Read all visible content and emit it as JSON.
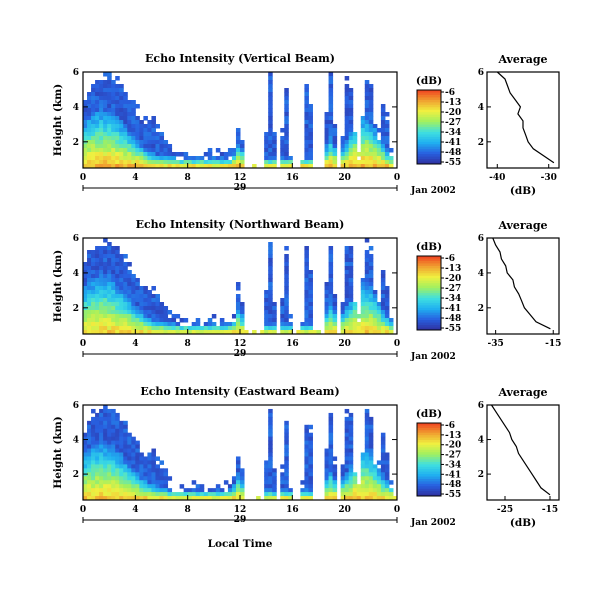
{
  "chart_data": [
    {
      "type": "heatmap",
      "title": "Echo Intensity (Vertical Beam)",
      "ylabel": "Height (km)",
      "x_ticks": [
        "0",
        "4",
        "8",
        "12",
        "16",
        "20",
        "0"
      ],
      "y_ticks": [
        "6",
        "4",
        "2"
      ],
      "date_marker": "29",
      "date_label": "Jan 2002",
      "xlim": [
        0,
        24
      ],
      "ylim": [
        0.5,
        6
      ],
      "colorbar_label": "(dB)",
      "colorbar_ticks": [
        "-6",
        "-13",
        "-20",
        "-27",
        "-34",
        "-41",
        "-48",
        "-55"
      ],
      "colorscale": [
        "#3030a0",
        "#2860e0",
        "#20b0f0",
        "#40e0e0",
        "#a0f060",
        "#f0f040",
        "#f0a030",
        "#f04020"
      ],
      "intensity": 1.0,
      "average": {
        "title": "Average",
        "xlabel": "(dB)",
        "x_ticks": [
          "-40",
          "-30"
        ],
        "y_ticks": [
          "6",
          "4",
          "2"
        ],
        "xlim": [
          -42,
          -28
        ],
        "ylim": [
          0.5,
          6
        ],
        "height_km": [
          6.0,
          5.6,
          5.2,
          4.8,
          4.4,
          4.0,
          3.6,
          3.2,
          2.8,
          2.4,
          2.0,
          1.6,
          1.2,
          0.8
        ],
        "db": [
          -40,
          -38.5,
          -38,
          -37.5,
          -36.5,
          -35.5,
          -36,
          -35,
          -35,
          -34.5,
          -34,
          -33,
          -31,
          -29
        ]
      }
    },
    {
      "type": "heatmap",
      "title": "Echo Intensity (Northward Beam)",
      "ylabel": "Height (km)",
      "x_ticks": [
        "0",
        "4",
        "8",
        "12",
        "16",
        "20",
        "0"
      ],
      "y_ticks": [
        "6",
        "4",
        "2"
      ],
      "date_marker": "29",
      "date_label": "Jan 2002",
      "xlim": [
        0,
        24
      ],
      "ylim": [
        0.5,
        6
      ],
      "colorbar_label": "(dB)",
      "colorbar_ticks": [
        "-6",
        "-13",
        "-20",
        "-27",
        "-34",
        "-41",
        "-48",
        "-55"
      ],
      "colorscale": [
        "#3030a0",
        "#2860e0",
        "#20b0f0",
        "#40e0e0",
        "#a0f060",
        "#f0f040",
        "#f0a030",
        "#f04020"
      ],
      "intensity": 0.92,
      "average": {
        "title": "Average",
        "xlabel": "",
        "x_ticks": [
          "-35",
          "-15"
        ],
        "y_ticks": [
          "6",
          "4",
          "2"
        ],
        "xlim": [
          -38,
          -13
        ],
        "ylim": [
          0.5,
          6
        ],
        "height_km": [
          6.0,
          5.6,
          5.2,
          4.8,
          4.4,
          4.0,
          3.6,
          3.2,
          2.8,
          2.4,
          2.0,
          1.6,
          1.2,
          0.8
        ],
        "db": [
          -36,
          -35,
          -33.5,
          -33,
          -31.5,
          -31,
          -29,
          -28.5,
          -27,
          -26,
          -25,
          -23,
          -21,
          -16
        ]
      }
    },
    {
      "type": "heatmap",
      "title": "Echo Intensity (Eastward Beam)",
      "ylabel": "Height (km)",
      "xlabel": "Local Time",
      "x_ticks": [
        "0",
        "4",
        "8",
        "12",
        "16",
        "20",
        "0"
      ],
      "y_ticks": [
        "6",
        "4",
        "2"
      ],
      "date_marker": "29",
      "date_label": "Jan 2002",
      "xlim": [
        0,
        24
      ],
      "ylim": [
        0.5,
        6
      ],
      "colorbar_label": "(dB)",
      "colorbar_ticks": [
        "-6",
        "-13",
        "-20",
        "-27",
        "-34",
        "-41",
        "-48",
        "-55"
      ],
      "colorscale": [
        "#3030a0",
        "#2860e0",
        "#20b0f0",
        "#40e0e0",
        "#a0f060",
        "#f0f040",
        "#f0a030",
        "#f04020"
      ],
      "intensity": 0.95,
      "average": {
        "title": "Average",
        "xlabel": "(dB)",
        "x_ticks": [
          "-25",
          "-15"
        ],
        "y_ticks": [
          "6",
          "4",
          "2"
        ],
        "xlim": [
          -29,
          -13
        ],
        "ylim": [
          0.5,
          6
        ],
        "height_km": [
          6.0,
          5.6,
          5.2,
          4.8,
          4.4,
          4.0,
          3.6,
          3.2,
          2.8,
          2.4,
          2.0,
          1.6,
          1.2,
          0.8
        ],
        "db": [
          -28,
          -27,
          -26,
          -25,
          -24,
          -23.5,
          -22.5,
          -22,
          -21,
          -20,
          -19,
          -18,
          -17,
          -15
        ]
      }
    }
  ]
}
